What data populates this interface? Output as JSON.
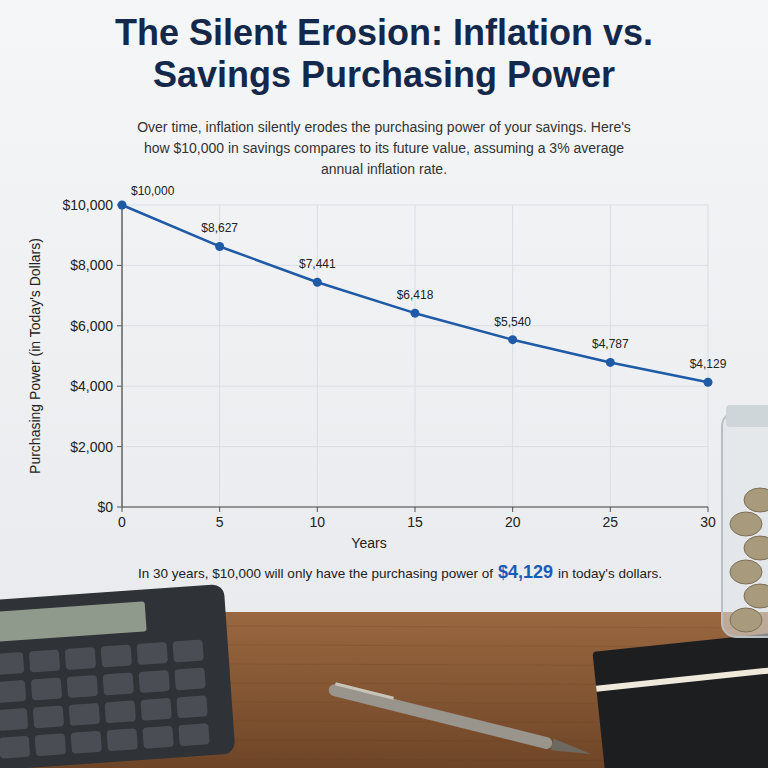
{
  "chart_data": {
    "type": "line",
    "title": "The Silent Erosion: Inflation vs. Savings Purchasing Power",
    "subtitle": "Over time, inflation silently erodes the purchasing power of your savings. Here's how $10,000 in savings compares to its future value, assuming a 3% average annual inflation rate.",
    "x_label": "Years",
    "y_label": "Purchasing Power (in Today's Dollars)",
    "annotation": {
      "prefix": "In 30 years, $10,000 will only have the purchasing power of",
      "highlight": "$4,129",
      "suffix": "in today's dollars."
    },
    "x": [
      0,
      5,
      10,
      15,
      20,
      25,
      30
    ],
    "values": [
      10000,
      8627,
      7441,
      6418,
      5540,
      4787,
      4129
    ],
    "value_labels": [
      "$10,000",
      "$8,627",
      "$7,441",
      "$6,418",
      "$5,540",
      "$4,787",
      "$4,129"
    ],
    "color": "#1f5aa6",
    "marker": "circle",
    "line_style": "solid",
    "data_labels": true,
    "grid": true,
    "xlim": [
      0,
      30
    ],
    "ylim": [
      0,
      10000
    ],
    "xticks": [
      0,
      5,
      10,
      15,
      20,
      25,
      30
    ],
    "yticks": [
      {
        "value": 0,
        "label": "$0"
      },
      {
        "value": 2000,
        "label": "$2,000"
      },
      {
        "value": 4000,
        "label": "$4,000"
      },
      {
        "value": 6000,
        "label": "$6,000"
      },
      {
        "value": 8000,
        "label": "$8,000"
      },
      {
        "value": 10000,
        "label": "$10,000"
      }
    ]
  }
}
